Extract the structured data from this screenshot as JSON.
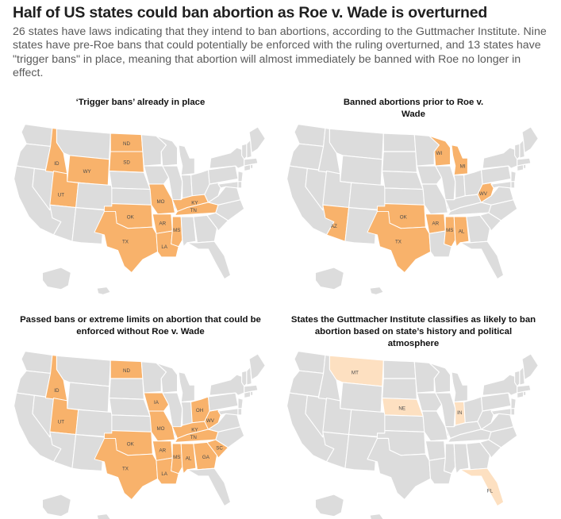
{
  "header": {
    "title": "Half of US states could ban abortion as Roe v. Wade is overturned",
    "subtitle": "26 states have laws indicating that they intend to ban abortions, according to the Guttmacher Institute. Nine states have pre-Roe bans that could potentially be enforced with the ruling overturned, and 13 states have \"trigger bans\" in place, meaning that abortion will almost immediately be banned with Roe no longer in effect."
  },
  "colors": {
    "base": "#dcdcdc",
    "highlight": "#f8b26b",
    "highlight_light": "#fde0c1",
    "border": "#ffffff"
  },
  "panels": [
    {
      "title": "‘Trigger bans’ already in place",
      "fill": "#f8b26b",
      "states": [
        "ID",
        "UT",
        "WY",
        "ND",
        "SD",
        "MO",
        "KY",
        "OK",
        "AR",
        "TN",
        "TX",
        "LA",
        "MS"
      ]
    },
    {
      "title": "Banned abortions prior to Roe v. Wade",
      "fill": "#f8b26b",
      "states": [
        "WI",
        "MI",
        "WV",
        "AZ",
        "OK",
        "AR",
        "TX",
        "MS",
        "AL"
      ]
    },
    {
      "title": "Passed bans or extreme limits on abortion that could be enforced without Roe v. Wade",
      "fill": "#f8b26b",
      "states": [
        "ID",
        "UT",
        "ND",
        "IA",
        "MO",
        "OH",
        "KY",
        "WV",
        "OK",
        "AR",
        "TN",
        "TX",
        "LA",
        "MS",
        "AL",
        "GA",
        "SC"
      ]
    },
    {
      "title": "States the Guttmacher Institute classifies as likely to ban abortion based on state’s history and political atmosphere",
      "fill": "#fde0c1",
      "states": [
        "MT",
        "NE",
        "IN",
        "FL"
      ]
    }
  ]
}
